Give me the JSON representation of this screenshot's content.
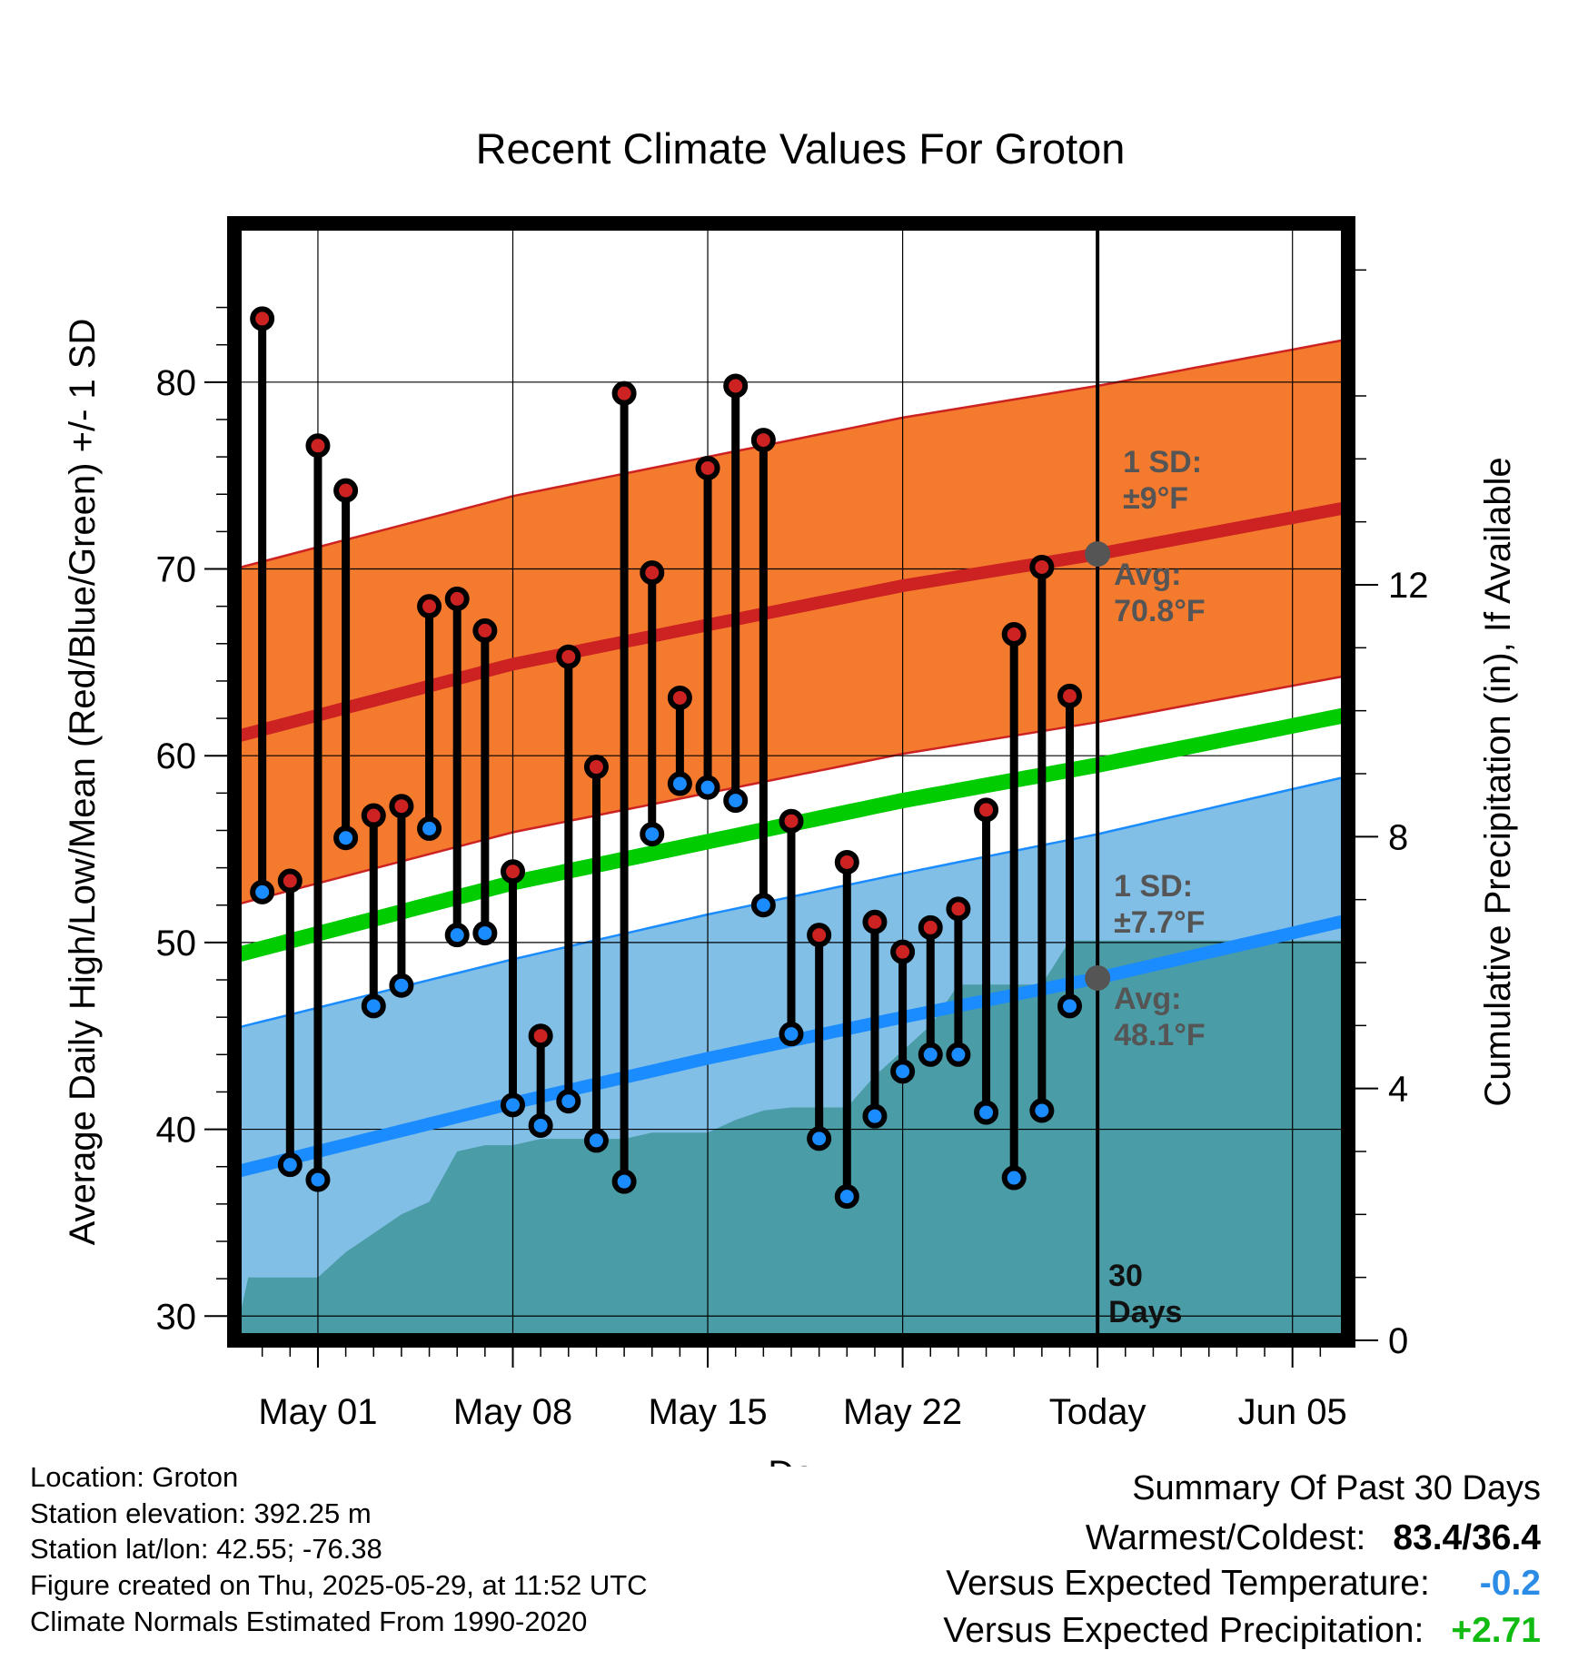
{
  "chart_data": {
    "type": "line",
    "title": "Recent Climate Values For Groton",
    "xlabel": "Day",
    "ylabel": "Average Daily High/Low/Mean (Red/Blue/Green) +/- 1 SD",
    "y2label": "Cumulative Precipitation (in), If Available",
    "ylim": [
      28.7,
      88.5
    ],
    "y2lim": [
      0,
      17.74
    ],
    "yticks": [
      30,
      40,
      50,
      60,
      70,
      80
    ],
    "y2ticks": [
      0,
      4,
      8,
      12
    ],
    "xlim": [
      "2025-04-28",
      "2025-06-07"
    ],
    "x_tick_labels": [
      {
        "date": "2025-05-01",
        "label": "May 01"
      },
      {
        "date": "2025-05-08",
        "label": "May 08"
      },
      {
        "date": "2025-05-15",
        "label": "May 15"
      },
      {
        "date": "2025-05-22",
        "label": "May 22"
      },
      {
        "date": "2025-05-29",
        "label": "Today"
      },
      {
        "date": "2025-06-05",
        "label": "Jun 05"
      }
    ],
    "today": "2025-05-29",
    "today_label": "30\nDays",
    "normal_high": {
      "x": [
        "2025-04-28",
        "2025-05-08",
        "2025-05-15",
        "2025-05-22",
        "2025-05-29",
        "2025-06-07"
      ],
      "mean": [
        61.0,
        64.9,
        67.0,
        69.1,
        70.8,
        73.3
      ],
      "sd": 9,
      "sd_label": "1 SD:\n±9°F",
      "avg_label": "Avg:\n70.8°F",
      "today_value": 70.8
    },
    "normal_low": {
      "x": [
        "2025-04-28",
        "2025-05-08",
        "2025-05-15",
        "2025-05-22",
        "2025-05-29",
        "2025-06-07"
      ],
      "mean": [
        37.7,
        41.4,
        43.8,
        46.0,
        48.1,
        51.2
      ],
      "sd": 7.7,
      "sd_label": "1 SD:\n±7.7°F",
      "avg_label": "Avg:\n48.1°F",
      "today_value": 48.1
    },
    "normal_mean": {
      "x": [
        "2025-04-28",
        "2025-05-08",
        "2025-05-15",
        "2025-05-22",
        "2025-05-29",
        "2025-06-07"
      ],
      "values": [
        49.3,
        53.2,
        55.4,
        57.6,
        59.5,
        62.2
      ]
    },
    "daily": [
      {
        "date": "2025-04-29",
        "high": 83.4,
        "low": 52.7
      },
      {
        "date": "2025-04-30",
        "high": 53.3,
        "low": 38.1
      },
      {
        "date": "2025-05-01",
        "high": 76.6,
        "low": 37.3
      },
      {
        "date": "2025-05-02",
        "high": 74.2,
        "low": 55.6
      },
      {
        "date": "2025-05-03",
        "high": 56.8,
        "low": 46.6
      },
      {
        "date": "2025-05-04",
        "high": 57.3,
        "low": 47.7
      },
      {
        "date": "2025-05-05",
        "high": 68.0,
        "low": 56.1
      },
      {
        "date": "2025-05-06",
        "high": 68.4,
        "low": 50.4
      },
      {
        "date": "2025-05-07",
        "high": 66.7,
        "low": 50.5
      },
      {
        "date": "2025-05-08",
        "high": 53.8,
        "low": 41.3
      },
      {
        "date": "2025-05-09",
        "high": 45.0,
        "low": 40.2
      },
      {
        "date": "2025-05-10",
        "high": 65.3,
        "low": 41.5
      },
      {
        "date": "2025-05-11",
        "high": 59.4,
        "low": 39.4
      },
      {
        "date": "2025-05-12",
        "high": 79.4,
        "low": 37.2
      },
      {
        "date": "2025-05-13",
        "high": 69.8,
        "low": 55.8
      },
      {
        "date": "2025-05-14",
        "high": 63.1,
        "low": 58.5
      },
      {
        "date": "2025-05-15",
        "high": 75.4,
        "low": 58.3
      },
      {
        "date": "2025-05-16",
        "high": 79.8,
        "low": 57.6
      },
      {
        "date": "2025-05-17",
        "high": 76.9,
        "low": 52.0
      },
      {
        "date": "2025-05-18",
        "high": 56.5,
        "low": 45.1
      },
      {
        "date": "2025-05-19",
        "high": 50.4,
        "low": 39.5
      },
      {
        "date": "2025-05-20",
        "high": 54.3,
        "low": 36.4
      },
      {
        "date": "2025-05-21",
        "high": 51.1,
        "low": 40.7
      },
      {
        "date": "2025-05-22",
        "high": 49.5,
        "low": 43.1
      },
      {
        "date": "2025-05-23",
        "high": 50.8,
        "low": 44.0
      },
      {
        "date": "2025-05-24",
        "high": 51.8,
        "low": 44.0
      },
      {
        "date": "2025-05-25",
        "high": 57.1,
        "low": 40.9
      },
      {
        "date": "2025-05-26",
        "high": 66.5,
        "low": 37.4
      },
      {
        "date": "2025-05-27",
        "high": 70.1,
        "low": 41.0
      },
      {
        "date": "2025-05-28",
        "high": 63.2,
        "low": 46.6
      }
    ],
    "precipitation": {
      "label": "Cumulative precipitation (in)",
      "points": [
        {
          "date": "2025-04-28",
          "value": 0.0
        },
        {
          "date": "2025-04-28T12:00",
          "value": 1.0
        },
        {
          "date": "2025-05-01",
          "value": 1.0
        },
        {
          "date": "2025-05-02",
          "value": 1.4
        },
        {
          "date": "2025-05-03",
          "value": 1.7
        },
        {
          "date": "2025-05-04",
          "value": 2.0
        },
        {
          "date": "2025-05-05",
          "value": 2.2
        },
        {
          "date": "2025-05-06",
          "value": 3.0
        },
        {
          "date": "2025-05-07",
          "value": 3.1
        },
        {
          "date": "2025-05-08",
          "value": 3.1
        },
        {
          "date": "2025-05-09",
          "value": 3.2
        },
        {
          "date": "2025-05-12",
          "value": 3.2
        },
        {
          "date": "2025-05-13",
          "value": 3.3
        },
        {
          "date": "2025-05-15",
          "value": 3.3
        },
        {
          "date": "2025-05-16",
          "value": 3.5
        },
        {
          "date": "2025-05-17",
          "value": 3.65
        },
        {
          "date": "2025-05-18",
          "value": 3.7
        },
        {
          "date": "2025-05-20",
          "value": 3.7
        },
        {
          "date": "2025-05-21",
          "value": 4.2
        },
        {
          "date": "2025-05-22",
          "value": 4.6
        },
        {
          "date": "2025-05-23",
          "value": 5.0
        },
        {
          "date": "2025-05-24",
          "value": 5.65
        },
        {
          "date": "2025-05-27",
          "value": 5.65
        },
        {
          "date": "2025-05-28",
          "value": 6.35
        },
        {
          "date": "2025-06-07",
          "value": 6.35
        }
      ]
    }
  },
  "colors": {
    "high": "#cc2222",
    "high_band": "#f47a2e",
    "low": "#1a8cff",
    "low_band": "#82bfe6",
    "mean": "#00cc00",
    "precip": "#4a9ca6",
    "annotation": "#555555",
    "positive": "#11bb11",
    "negative": "#2b8ce6"
  },
  "footer": {
    "location": "Location: Groton",
    "elevation": "Station elevation: 392.25 m",
    "latlon": "Station lat/lon: 42.55; -76.38",
    "created": "Figure created on Thu, 2025-05-29, at 11:52 UTC",
    "normals": "Climate Normals Estimated From 1990-2020"
  },
  "summary": {
    "heading": "Summary Of Past 30 Days",
    "warmest_coldest_label": "Warmest/Coldest:",
    "warmest_coldest_value": "83.4/36.4",
    "temp_label": "Versus Expected Temperature:",
    "temp_value": "-0.2",
    "precip_label": "Versus Expected Precipitation:",
    "precip_value": "+2.71"
  }
}
